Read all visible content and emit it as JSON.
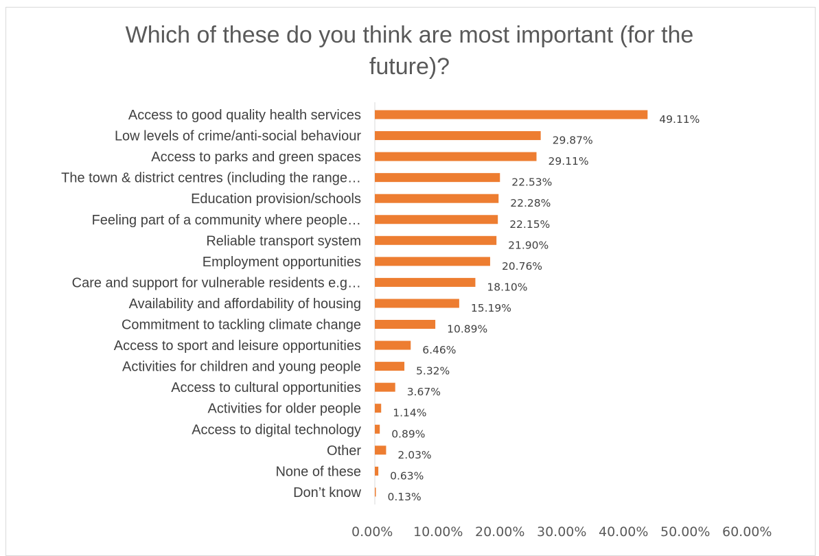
{
  "chart_data": {
    "type": "bar",
    "orientation": "horizontal",
    "title_lines": [
      "Which of these do you think are most important (for the",
      "future)?"
    ],
    "categories": [
      "Access to good quality health services",
      "Low levels of crime/anti-social behaviour",
      "Access to parks and green spaces",
      "The town & district centres (including the range…",
      "Education provision/schools",
      "Feeling part of a community where people…",
      "Reliable transport system",
      "Employment opportunities",
      "Care and support for vulnerable residents e.g…",
      "Availability and affordability of housing",
      "Commitment to tackling climate change",
      "Access to sport and leisure opportunities",
      "Activities for children and young people",
      "Access to cultural opportunities",
      "Activities for older people",
      "Access to digital technology",
      "Other",
      "None of these",
      "Don’t know"
    ],
    "values": [
      49.11,
      29.87,
      29.11,
      22.53,
      22.28,
      22.15,
      21.9,
      20.76,
      18.1,
      15.19,
      10.89,
      6.46,
      5.32,
      3.67,
      1.14,
      0.89,
      2.03,
      0.63,
      0.13
    ],
    "value_labels": [
      "49.11%",
      "29.87%",
      "29.11%",
      "22.53%",
      "22.28%",
      "22.15%",
      "21.90%",
      "20.76%",
      "18.10%",
      "15.19%",
      "10.89%",
      "6.46%",
      "5.32%",
      "3.67%",
      "1.14%",
      "0.89%",
      "2.03%",
      "0.63%",
      "0.13%"
    ],
    "x_ticks": [
      "0.00%",
      "10.00%",
      "20.00%",
      "30.00%",
      "40.00%",
      "50.00%",
      "60.00%"
    ],
    "xlim": [
      0,
      60
    ],
    "grid": false,
    "legend": "none",
    "bar_color": "#ED7D31",
    "axis_color": "#D9D9D9",
    "text_color": "#404040"
  }
}
